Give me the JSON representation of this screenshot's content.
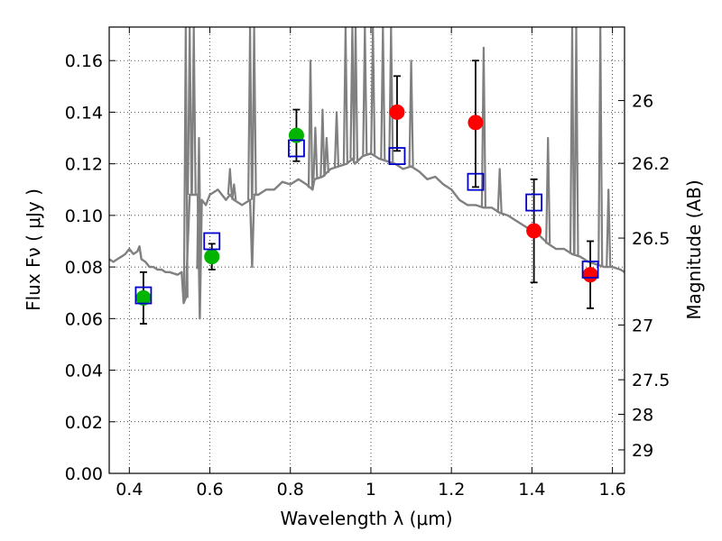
{
  "chart_data": {
    "type": "scatter",
    "xlabel": "Wavelength  λ (μm)",
    "ylabel": "Flux  Fν  ( μJy )",
    "ylabel_right": "Magnitude (AB)",
    "xlim": [
      0.35,
      1.63
    ],
    "ylim": [
      0.0,
      0.173
    ],
    "grid": true,
    "x_ticks": [
      0.4,
      0.6,
      0.8,
      1.0,
      1.2,
      1.4,
      1.6
    ],
    "x_tick_labels": [
      "0.4",
      "0.6",
      "0.8",
      "1",
      "1.2",
      "1.4",
      "1.6"
    ],
    "y_ticks": [
      0.0,
      0.02,
      0.04,
      0.06,
      0.08,
      0.1,
      0.12,
      0.14,
      0.16
    ],
    "y_tick_labels": [
      "0.00",
      "0.02",
      "0.04",
      "0.06",
      "0.08",
      "0.10",
      "0.12",
      "0.14",
      "0.16"
    ],
    "right_ticks": [
      {
        "label": "26",
        "flux": 0.1445
      },
      {
        "label": "26.2",
        "flux": 0.1202
      },
      {
        "label": "26.5",
        "flux": 0.0912
      },
      {
        "label": "27",
        "flux": 0.0575
      },
      {
        "label": "27.5",
        "flux": 0.0363
      },
      {
        "label": "28",
        "flux": 0.0229
      },
      {
        "label": "29",
        "flux": 0.0091
      }
    ],
    "series": [
      {
        "kind": "line",
        "color": "#808080",
        "x": [
          0.35,
          0.36,
          0.37,
          0.38,
          0.39,
          0.4,
          0.41,
          0.42,
          0.425,
          0.43,
          0.44,
          0.45,
          0.46,
          0.47,
          0.48,
          0.49,
          0.5,
          0.52,
          0.53,
          0.535,
          0.54,
          0.545,
          0.55,
          0.56,
          0.57,
          0.575,
          0.58,
          0.59,
          0.6,
          0.62,
          0.64,
          0.65,
          0.66,
          0.68,
          0.7,
          0.705,
          0.71,
          0.72,
          0.74,
          0.76,
          0.78,
          0.8,
          0.82,
          0.84,
          0.855,
          0.86,
          0.88,
          0.9,
          0.92,
          0.94,
          0.955,
          0.96,
          0.98,
          1.0,
          1.02,
          1.04,
          1.06,
          1.08,
          1.1,
          1.12,
          1.14,
          1.16,
          1.18,
          1.2,
          1.22,
          1.24,
          1.26,
          1.28,
          1.3,
          1.32,
          1.34,
          1.36,
          1.38,
          1.4,
          1.42,
          1.44,
          1.46,
          1.48,
          1.5,
          1.52,
          1.54,
          1.56,
          1.58,
          1.6,
          1.62,
          1.63
        ],
        "y": [
          0.083,
          0.082,
          0.083,
          0.084,
          0.085,
          0.087,
          0.085,
          0.086,
          0.088,
          0.083,
          0.082,
          0.08,
          0.08,
          0.079,
          0.079,
          0.078,
          0.078,
          0.077,
          0.078,
          0.066,
          0.068,
          0.088,
          0.108,
          0.108,
          0.108,
          0.06,
          0.106,
          0.104,
          0.108,
          0.11,
          0.106,
          0.108,
          0.106,
          0.104,
          0.106,
          0.08,
          0.108,
          0.108,
          0.11,
          0.11,
          0.113,
          0.112,
          0.114,
          0.112,
          0.11,
          0.114,
          0.115,
          0.118,
          0.119,
          0.12,
          0.122,
          0.12,
          0.123,
          0.124,
          0.122,
          0.121,
          0.12,
          0.118,
          0.119,
          0.117,
          0.114,
          0.115,
          0.112,
          0.11,
          0.106,
          0.104,
          0.104,
          0.103,
          0.103,
          0.101,
          0.1,
          0.098,
          0.096,
          0.094,
          0.092,
          0.089,
          0.087,
          0.087,
          0.085,
          0.084,
          0.082,
          0.081,
          0.08,
          0.08,
          0.079,
          0.078
        ]
      },
      {
        "kind": "spikes",
        "color": "#808080",
        "x": [
          0.54,
          0.55,
          0.56,
          0.573,
          0.65,
          0.66,
          0.7,
          0.71,
          0.85,
          0.862,
          0.88,
          0.89,
          0.915,
          0.937,
          0.954,
          0.962,
          0.985,
          1.005,
          1.03,
          1.05,
          1.1,
          1.28,
          1.32,
          1.44,
          1.5,
          1.51,
          1.57,
          1.59
        ],
        "y_top": [
          0.173,
          0.173,
          0.173,
          0.13,
          0.118,
          0.112,
          0.173,
          0.173,
          0.16,
          0.134,
          0.141,
          0.13,
          0.14,
          0.173,
          0.173,
          0.173,
          0.173,
          0.173,
          0.173,
          0.173,
          0.16,
          0.165,
          0.118,
          0.13,
          0.173,
          0.173,
          0.173,
          0.11
        ]
      },
      {
        "kind": "points",
        "color": "#00b400",
        "marker": "circle",
        "x": [
          0.435,
          0.605,
          0.815
        ],
        "y": [
          0.068,
          0.084,
          0.131
        ],
        "err_lo": [
          0.058,
          0.079,
          0.121
        ],
        "err_hi": [
          0.078,
          0.089,
          0.141
        ]
      },
      {
        "kind": "points",
        "color": "#ff0000",
        "marker": "circle",
        "x": [
          1.065,
          1.26,
          1.405,
          1.545
        ],
        "y": [
          0.14,
          0.136,
          0.094,
          0.077
        ],
        "err_lo": [
          0.125,
          0.111,
          0.074,
          0.064
        ],
        "err_hi": [
          0.154,
          0.16,
          0.114,
          0.09
        ]
      },
      {
        "kind": "points",
        "color": "#0000cc",
        "marker": "open-square",
        "x": [
          0.435,
          0.605,
          0.815,
          1.065,
          1.26,
          1.405,
          1.545
        ],
        "y": [
          0.069,
          0.09,
          0.126,
          0.123,
          0.113,
          0.105,
          0.079
        ]
      }
    ]
  }
}
